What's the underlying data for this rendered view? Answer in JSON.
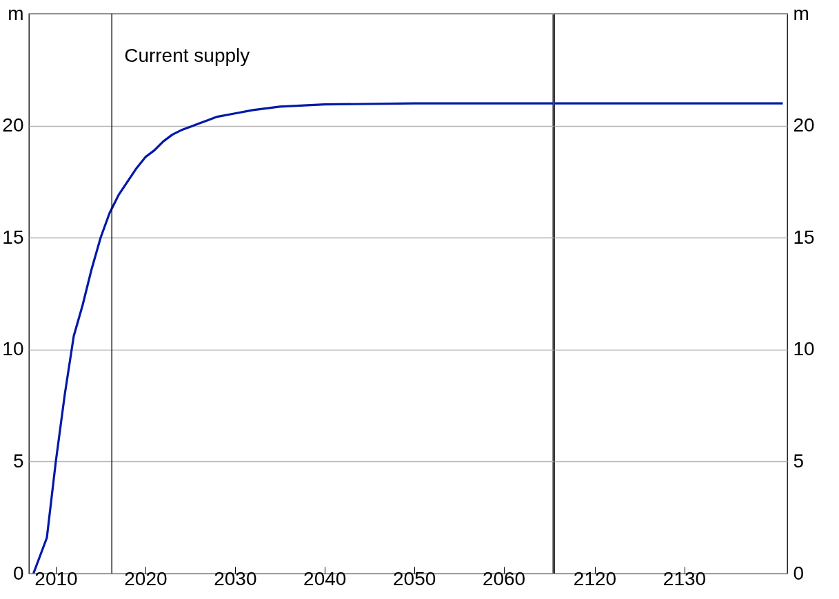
{
  "chart_data": [
    {
      "type": "line",
      "xlim": [
        2007,
        2065.5
      ],
      "xticks": [
        2010,
        2020,
        2030,
        2040,
        2050,
        2060
      ],
      "ylim": [
        0,
        25
      ],
      "yticks": [
        0,
        5,
        10,
        15,
        20,
        {
          "value": 25,
          "label": "m"
        }
      ],
      "grid": "y",
      "series": [
        {
          "color": "#0018a8",
          "x": [
            2007.5,
            2009,
            2010,
            2011,
            2012,
            2013,
            2014,
            2015,
            2016,
            2017,
            2018,
            2019,
            2020,
            2021,
            2022,
            2023,
            2024,
            2025,
            2026,
            2027,
            2028,
            2030,
            2032,
            2035,
            2040,
            2050,
            2065.5
          ],
          "values": [
            0,
            1.6,
            5,
            8,
            10.6,
            12,
            13.6,
            15,
            16.1,
            16.9,
            17.5,
            18.1,
            18.6,
            18.9,
            19.3,
            19.6,
            19.8,
            19.95,
            20.1,
            20.25,
            20.4,
            20.55,
            20.7,
            20.85,
            20.95,
            21,
            21
          ]
        }
      ],
      "ref_lines": [
        {
          "axis": "x",
          "value": 2016.25,
          "label": "Current supply",
          "color": "#000000"
        }
      ]
    },
    {
      "type": "line",
      "xlim": [
        2115.5,
        2141.5
      ],
      "xticks": [
        2120,
        2130
      ],
      "ylim": [
        0,
        25
      ],
      "yticks": [
        0,
        5,
        10,
        15,
        20,
        {
          "value": 25,
          "label": "m"
        }
      ],
      "grid": "y",
      "series": [
        {
          "color": "#0018a8",
          "x": [
            2115.5,
            2141
          ],
          "values": [
            21,
            21
          ]
        }
      ]
    }
  ]
}
